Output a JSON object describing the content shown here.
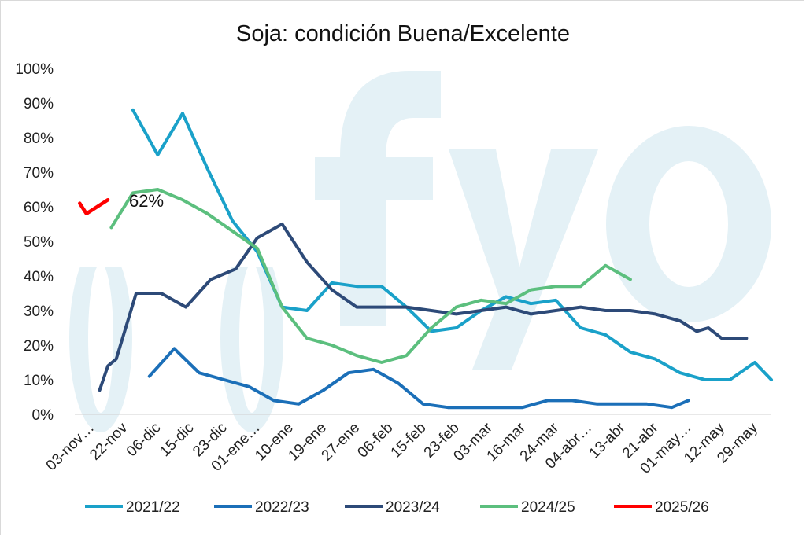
{
  "chart_data": {
    "type": "line",
    "title": "Soja: condición Buena/Excelente",
    "ylim": [
      0,
      100
    ],
    "yticks": [
      "0%",
      "10%",
      "20%",
      "30%",
      "40%",
      "50%",
      "60%",
      "70%",
      "80%",
      "90%",
      "100%"
    ],
    "categories": [
      "03-nov…",
      "22-nov",
      "06-dic",
      "15-dic",
      "23-dic",
      "01-ene…",
      "10-ene",
      "19-ene",
      "27-ene",
      "06-feb",
      "15-feb",
      "23-feb",
      "03-mar",
      "16-mar",
      "24-mar",
      "04-abr…",
      "13-abr",
      "21-abr",
      "01-may…",
      "12-may",
      "29-may"
    ],
    "grid": false,
    "legend_position": "bottom",
    "watermark": "fyo",
    "annotation": "62%",
    "series": [
      {
        "name": "2021/22",
        "color": "#1aa1c9",
        "points": [
          [
            3.5,
            88
          ],
          [
            5.0,
            75
          ],
          [
            6.5,
            87
          ],
          [
            8.0,
            71
          ],
          [
            9.5,
            56
          ],
          [
            11.0,
            47
          ],
          [
            12.5,
            31
          ],
          [
            14.0,
            30
          ],
          [
            15.5,
            38
          ],
          [
            17.0,
            37
          ],
          [
            18.5,
            37
          ],
          [
            20.0,
            31
          ],
          [
            21.5,
            24
          ],
          [
            23.0,
            25
          ],
          [
            24.5,
            30
          ],
          [
            26.0,
            34
          ],
          [
            27.5,
            32
          ],
          [
            29.0,
            33
          ],
          [
            30.5,
            25
          ],
          [
            32.0,
            23
          ],
          [
            33.5,
            18
          ],
          [
            35.0,
            16
          ],
          [
            36.5,
            12
          ],
          [
            38.0,
            10
          ],
          [
            39.5,
            10
          ],
          [
            41.0,
            15
          ],
          [
            42.0,
            10
          ]
        ]
      },
      {
        "name": "2022/23",
        "color": "#1b6fb8",
        "points": [
          [
            4.5,
            11
          ],
          [
            6.0,
            19
          ],
          [
            7.5,
            12
          ],
          [
            9.0,
            10
          ],
          [
            10.5,
            8
          ],
          [
            12.0,
            4
          ],
          [
            13.5,
            3
          ],
          [
            15.0,
            7
          ],
          [
            16.5,
            12
          ],
          [
            18.0,
            13
          ],
          [
            19.5,
            9
          ],
          [
            21.0,
            3
          ],
          [
            22.5,
            2
          ],
          [
            24.0,
            2
          ],
          [
            25.5,
            2
          ],
          [
            27.0,
            2
          ],
          [
            28.5,
            4
          ],
          [
            30.0,
            4
          ],
          [
            31.5,
            3
          ],
          [
            33.0,
            3
          ],
          [
            34.5,
            3
          ],
          [
            36.0,
            2
          ],
          [
            37.0,
            4
          ]
        ]
      },
      {
        "name": "2023/24",
        "color": "#2d4a78",
        "points": [
          [
            1.5,
            7
          ],
          [
            2.0,
            14
          ],
          [
            2.5,
            16
          ],
          [
            3.7,
            35
          ],
          [
            5.2,
            35
          ],
          [
            6.7,
            31
          ],
          [
            8.2,
            39
          ],
          [
            9.7,
            42
          ],
          [
            11.0,
            51
          ],
          [
            12.5,
            55
          ],
          [
            14.0,
            44
          ],
          [
            15.5,
            36
          ],
          [
            17.0,
            31
          ],
          [
            18.5,
            31
          ],
          [
            20.0,
            31
          ],
          [
            21.5,
            30
          ],
          [
            23.0,
            29
          ],
          [
            24.5,
            30
          ],
          [
            26.0,
            31
          ],
          [
            27.5,
            29
          ],
          [
            29.0,
            30
          ],
          [
            30.5,
            31
          ],
          [
            32.0,
            30
          ],
          [
            33.5,
            30
          ],
          [
            35.0,
            29
          ],
          [
            36.5,
            27
          ],
          [
            37.5,
            24
          ],
          [
            38.2,
            25
          ],
          [
            39.0,
            22
          ],
          [
            40.5,
            22
          ]
        ]
      },
      {
        "name": "2024/25",
        "color": "#5cbf7e",
        "points": [
          [
            2.2,
            54
          ],
          [
            3.5,
            64
          ],
          [
            5.0,
            65
          ],
          [
            6.5,
            62
          ],
          [
            8.0,
            58
          ],
          [
            9.5,
            53
          ],
          [
            11.0,
            48
          ],
          [
            12.5,
            31
          ],
          [
            14.0,
            22
          ],
          [
            15.5,
            20
          ],
          [
            17.0,
            17
          ],
          [
            18.5,
            15
          ],
          [
            20.0,
            17
          ],
          [
            21.5,
            25
          ],
          [
            23.0,
            31
          ],
          [
            24.5,
            33
          ],
          [
            26.0,
            32
          ],
          [
            27.5,
            36
          ],
          [
            29.0,
            37
          ],
          [
            30.5,
            37
          ],
          [
            32.0,
            43
          ],
          [
            33.5,
            39
          ]
        ]
      },
      {
        "name": "2025/26",
        "color": "#ff0000",
        "points": [
          [
            0.3,
            61
          ],
          [
            0.7,
            58
          ],
          [
            2.0,
            62
          ]
        ]
      }
    ]
  }
}
